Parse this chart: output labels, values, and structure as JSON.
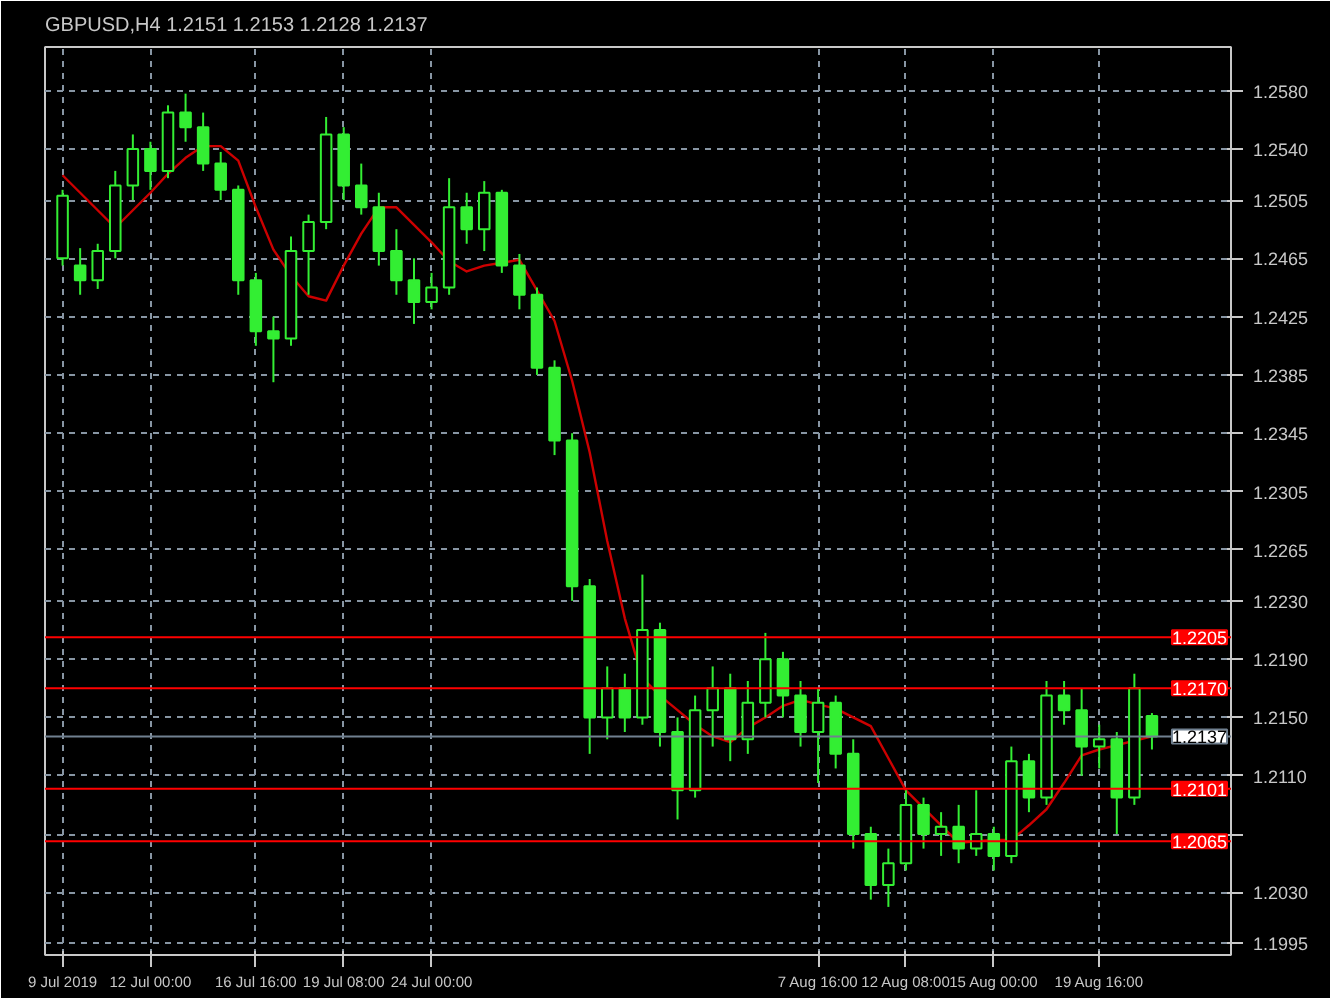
{
  "chart_data": {
    "type": "candlestick",
    "title": "GBPUSD,H4  1.2151 1.2153 1.2128 1.2137",
    "categories": [
      "9 Jul 2019",
      null,
      null,
      null,
      null,
      "12 Jul 00:00",
      null,
      null,
      null,
      null,
      null,
      "16 Jul 16:00",
      null,
      null,
      null,
      null,
      "19 Jul 08:00",
      null,
      null,
      null,
      null,
      "24 Jul 00:00",
      null,
      null,
      null,
      null,
      null,
      null,
      null,
      null,
      null,
      null,
      null,
      null,
      null,
      null,
      null,
      null,
      null,
      null,
      null,
      null,
      null,
      "7 Aug 16:00",
      null,
      null,
      null,
      null,
      "12 Aug 08:00",
      null,
      null,
      null,
      null,
      "15 Aug 00:00",
      null,
      null,
      null,
      null,
      null,
      "19 Aug 16:00",
      null,
      null,
      null
    ],
    "ylim": [
      1.1987,
      1.261
    ],
    "yticks": [
      {
        "value": 1.258,
        "label": "1.2580"
      },
      {
        "value": 1.254,
        "label": "1.2540"
      },
      1.2505,
      1.2465,
      1.2425,
      1.2385,
      1.2345,
      1.2305,
      1.2265,
      {
        "value": 1.223,
        "label": "1.2230"
      },
      {
        "value": 1.219,
        "label": "1.2190"
      },
      {
        "value": 1.215,
        "label": "1.2150"
      },
      {
        "value": 1.211,
        "label": "1.2110"
      },
      {
        "value": 1.207,
        "label": null
      },
      {
        "value": 1.203,
        "label": "1.2030"
      },
      1.1995
    ],
    "grid": true,
    "series": [
      {
        "color": "#33ee33",
        "ohlc": [
          [
            1.2465,
            1.2512,
            1.246,
            1.2508
          ],
          [
            1.246,
            1.2472,
            1.244,
            1.245
          ],
          [
            1.245,
            1.2475,
            1.2444,
            1.247
          ],
          [
            1.247,
            1.2525,
            1.2465,
            1.2515
          ],
          [
            1.2515,
            1.255,
            1.2505,
            1.254
          ],
          [
            1.254,
            1.2545,
            1.2512,
            1.2525
          ],
          [
            1.2525,
            1.257,
            1.252,
            1.2565
          ],
          [
            1.2565,
            1.2578,
            1.2545,
            1.2555
          ],
          [
            1.2555,
            1.2565,
            1.2525,
            1.253
          ],
          [
            1.253,
            1.2538,
            1.2505,
            1.2512
          ],
          [
            1.2512,
            1.2515,
            1.244,
            1.245
          ],
          [
            1.245,
            1.2455,
            1.2405,
            1.2415
          ],
          [
            1.2415,
            1.2425,
            1.238,
            1.241
          ],
          [
            1.241,
            1.248,
            1.2405,
            1.247
          ],
          [
            1.247,
            1.2495,
            1.244,
            1.249
          ],
          [
            1.249,
            1.2562,
            1.2485,
            1.255
          ],
          [
            1.255,
            1.2555,
            1.2505,
            1.2515
          ],
          [
            1.2515,
            1.253,
            1.2495,
            1.25
          ],
          [
            1.25,
            1.251,
            1.246,
            1.247
          ],
          [
            1.247,
            1.2485,
            1.244,
            1.245
          ],
          [
            1.245,
            1.2465,
            1.242,
            1.2435
          ],
          [
            1.2435,
            1.2455,
            1.243,
            1.2445
          ],
          [
            1.2445,
            1.252,
            1.244,
            1.25
          ],
          [
            1.25,
            1.251,
            1.2475,
            1.2485
          ],
          [
            1.2485,
            1.2518,
            1.247,
            1.251
          ],
          [
            1.251,
            1.2512,
            1.2455,
            1.246
          ],
          [
            1.246,
            1.2468,
            1.243,
            1.244
          ],
          [
            1.244,
            1.2445,
            1.2385,
            1.239
          ],
          [
            1.239,
            1.2395,
            1.233,
            1.234
          ],
          [
            1.234,
            1.2345,
            1.223,
            1.224
          ],
          [
            1.224,
            1.2245,
            1.2125,
            1.215
          ],
          [
            1.215,
            1.2185,
            1.2135,
            1.217
          ],
          [
            1.217,
            1.218,
            1.214,
            1.215
          ],
          [
            1.215,
            1.2248,
            1.2145,
            1.221
          ],
          [
            1.221,
            1.2215,
            1.213,
            1.214
          ],
          [
            1.214,
            1.215,
            1.208,
            1.21
          ],
          [
            1.21,
            1.2165,
            1.2095,
            1.2155
          ],
          [
            1.2155,
            1.2185,
            1.213,
            1.217
          ],
          [
            1.217,
            1.218,
            1.212,
            1.2135
          ],
          [
            1.2135,
            1.2175,
            1.2125,
            1.216
          ],
          [
            1.216,
            1.2208,
            1.215,
            1.219
          ],
          [
            1.219,
            1.2195,
            1.215,
            1.2165
          ],
          [
            1.2165,
            1.2175,
            1.213,
            1.214
          ],
          [
            1.214,
            1.217,
            1.2105,
            1.216
          ],
          [
            1.216,
            1.2165,
            1.2115,
            1.2125
          ],
          [
            1.2125,
            1.2135,
            1.206,
            1.207
          ],
          [
            1.207,
            1.2075,
            1.2025,
            1.2035
          ],
          [
            1.2035,
            1.206,
            1.202,
            1.205
          ],
          [
            1.205,
            1.21,
            1.2045,
            1.209
          ],
          [
            1.209,
            1.2095,
            1.206,
            1.207
          ],
          [
            1.207,
            1.2085,
            1.2055,
            1.2075
          ],
          [
            1.2075,
            1.209,
            1.205,
            1.206
          ],
          [
            1.206,
            1.21,
            1.2055,
            1.207
          ],
          [
            1.207,
            1.2075,
            1.2045,
            1.2055
          ],
          [
            1.2055,
            1.213,
            1.205,
            1.212
          ],
          [
            1.212,
            1.2125,
            1.2085,
            1.2095
          ],
          [
            1.2095,
            1.2175,
            1.209,
            1.2165
          ],
          [
            1.2165,
            1.2175,
            1.2145,
            1.2155
          ],
          [
            1.2155,
            1.217,
            1.211,
            1.213
          ],
          [
            1.213,
            1.2145,
            1.2115,
            1.2135
          ],
          [
            1.2135,
            1.214,
            1.207,
            1.2095
          ],
          [
            1.2095,
            1.218,
            1.209,
            1.217
          ],
          [
            1.2151,
            1.2153,
            1.2128,
            1.2137
          ]
        ]
      },
      {
        "type": "line",
        "color": "#cc0000",
        "values": [
          1.2522,
          1.251,
          1.2498,
          1.2486,
          1.2498,
          1.251,
          1.2523,
          1.2534,
          1.2542,
          1.2542,
          1.2532,
          1.25,
          1.2471,
          1.2453,
          1.2439,
          1.2436,
          1.246,
          1.2482,
          1.25,
          1.25,
          1.2488,
          1.2476,
          1.2463,
          1.2456,
          1.246,
          1.2462,
          1.2464,
          1.2443,
          1.2422,
          1.2381,
          1.2332,
          1.2271,
          1.2218,
          1.2177,
          1.2165,
          1.2155,
          1.2145,
          1.2137,
          1.2133,
          1.2143,
          1.215,
          1.2158,
          1.2162,
          1.2159,
          1.2156,
          1.215,
          1.2144,
          1.2122,
          1.21,
          1.2088,
          1.2076,
          1.2064,
          1.2065,
          1.2066,
          1.2066,
          1.2076,
          1.2087,
          1.2105,
          1.2124,
          1.2128,
          1.2131,
          1.2134,
          1.2137
        ]
      }
    ],
    "ref_lines": [
      {
        "axis": "y",
        "value": 1.2205,
        "label": "1.2205",
        "color": "#ff0000"
      },
      {
        "axis": "y",
        "value": 1.217,
        "label": "1.2170",
        "color": "#ff0000"
      },
      {
        "axis": "y",
        "value": 1.2137,
        "label": "1.2137",
        "color": "#708090"
      },
      {
        "axis": "y",
        "value": 1.2101,
        "label": "1.2101",
        "color": "#ff0000"
      },
      {
        "axis": "y",
        "value": 1.2065,
        "label": "1.2065",
        "color": "#ff0000"
      }
    ]
  }
}
